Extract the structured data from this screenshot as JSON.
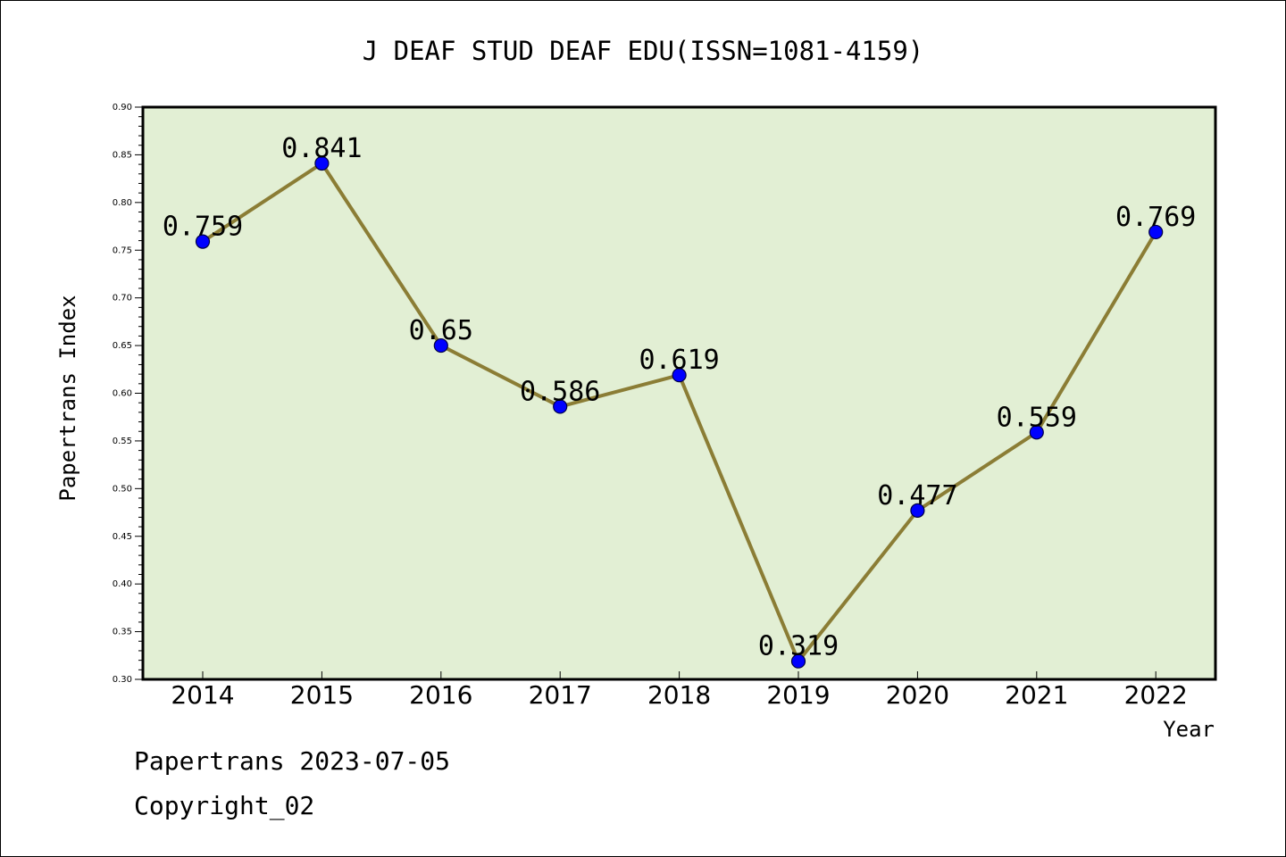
{
  "footer": {
    "line1": "Papertrans 2023-07-05",
    "line2": "Copyright_02"
  },
  "colors": {
    "plot_background": "#e2efd4",
    "line": "#8b7d35",
    "marker": "#0000ff",
    "marker_edge": "#000044"
  },
  "chart_data": {
    "type": "line",
    "title": "J DEAF STUD DEAF EDU(ISSN=1081-4159)",
    "xlabel": "Year",
    "ylabel": "Papertrans Index",
    "x": [
      "2014",
      "2015",
      "2016",
      "2017",
      "2018",
      "2019",
      "2020",
      "2021",
      "2022"
    ],
    "series": [
      {
        "values": [
          0.759,
          0.841,
          0.65,
          0.586,
          0.619,
          0.319,
          0.477,
          0.559,
          0.769
        ],
        "labels": [
          "0.759",
          "0.841",
          "0.65",
          "0.586",
          "0.619",
          "0.319",
          "0.477",
          "0.559",
          "0.769"
        ]
      }
    ],
    "ylim": [
      0.3,
      0.9
    ],
    "yticks": [
      "0.30",
      "0.35",
      "0.40",
      "0.45",
      "0.50",
      "0.55",
      "0.60",
      "0.65",
      "0.70",
      "0.75",
      "0.80",
      "0.85",
      "0.90"
    ],
    "grid": false,
    "legend": "none",
    "markers": "circle"
  }
}
